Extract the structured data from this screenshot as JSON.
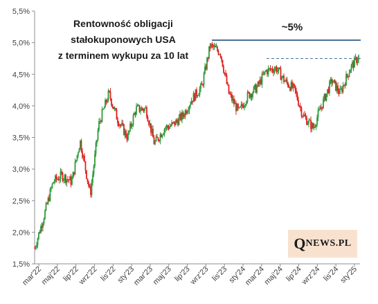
{
  "chart_data": {
    "type": "candlestick",
    "title_lines": [
      "Rentowność obligacji",
      "stałokuponowych  USA",
      "z terminem wykupu za 10 lat"
    ],
    "annotation": "~5%",
    "ylim": [
      1.5,
      5.5
    ],
    "y_ticks": [
      "1,5%",
      "2,0%",
      "2,5%",
      "3,0%",
      "3,5%",
      "4,0%",
      "4,5%",
      "5,0%",
      "5,5%"
    ],
    "y_tick_values": [
      1.5,
      2.0,
      2.5,
      3.0,
      3.5,
      4.0,
      4.5,
      5.0,
      5.5
    ],
    "x_ticks": [
      "mar'22",
      "maj'22",
      "lip'22",
      "wrz'22",
      "lis'22",
      "sty'23",
      "mar'23",
      "maj'23",
      "lip'23",
      "wrz'23",
      "lis'23",
      "sty'24",
      "mar'24",
      "maj'24",
      "lip'24",
      "wrz'24",
      "lis'24",
      "sty'25"
    ],
    "reference_lines": [
      {
        "style": "solid",
        "value": 5.04,
        "color": "#4a6f96"
      },
      {
        "style": "dashed",
        "value": 4.75,
        "color": "#4a6f96"
      }
    ],
    "up_color": "#2e9a3c",
    "down_color": "#e02020",
    "grid": false,
    "series_anchors": [
      {
        "x": "mar'22",
        "y": 1.75
      },
      {
        "x": "mar'22",
        "y": 2.2
      },
      {
        "x": "maj'22",
        "y": 2.8
      },
      {
        "x": "maj'22",
        "y": 2.9
      },
      {
        "x": "lip'22",
        "y": 2.8
      },
      {
        "x": "lip'22",
        "y": 3.45
      },
      {
        "x": "wrz'22",
        "y": 2.6
      },
      {
        "x": "wrz'22",
        "y": 3.7
      },
      {
        "x": "lis'22",
        "y": 4.2
      },
      {
        "x": "lis'22",
        "y": 3.8
      },
      {
        "x": "sty'23",
        "y": 3.5
      },
      {
        "x": "sty'23",
        "y": 3.95
      },
      {
        "x": "mar'23",
        "y": 3.95
      },
      {
        "x": "mar'23",
        "y": 3.4
      },
      {
        "x": "maj'23",
        "y": 3.65
      },
      {
        "x": "maj'23",
        "y": 3.7
      },
      {
        "x": "lip'23",
        "y": 3.85
      },
      {
        "x": "lip'23",
        "y": 4.1
      },
      {
        "x": "wrz'23",
        "y": 4.3
      },
      {
        "x": "wrz'23",
        "y": 4.95
      },
      {
        "x": "lis'23",
        "y": 4.85
      },
      {
        "x": "lis'23",
        "y": 4.2
      },
      {
        "x": "sty'24",
        "y": 3.9
      },
      {
        "x": "sty'24",
        "y": 4.15
      },
      {
        "x": "mar'24",
        "y": 4.3
      },
      {
        "x": "mar'24",
        "y": 4.55
      },
      {
        "x": "maj'24",
        "y": 4.6
      },
      {
        "x": "maj'24",
        "y": 4.4
      },
      {
        "x": "lip'24",
        "y": 4.25
      },
      {
        "x": "lip'24",
        "y": 3.85
      },
      {
        "x": "wrz'24",
        "y": 3.65
      },
      {
        "x": "wrz'24",
        "y": 4.0
      },
      {
        "x": "lis'24",
        "y": 4.4
      },
      {
        "x": "lis'24",
        "y": 4.2
      },
      {
        "x": "sty'25",
        "y": 4.6
      },
      {
        "x": "sty'25",
        "y": 4.78
      }
    ]
  },
  "logo": {
    "q": "Q",
    "rest": "NEWS.PL"
  }
}
